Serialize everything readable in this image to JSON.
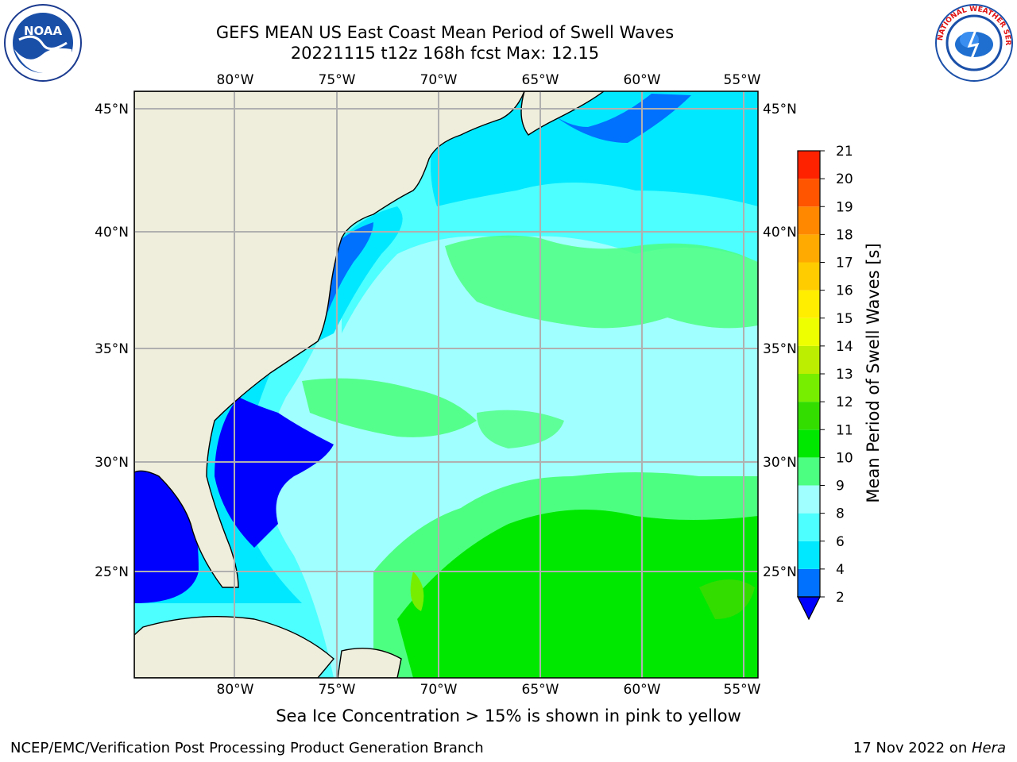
{
  "title": {
    "line1": "GEFS MEAN US East Coast Mean Period of Swell Waves",
    "line2": "20221115 t12z 168h fcst   Max: 12.15"
  },
  "map": {
    "projection": "equirectangular",
    "lon_range": [
      -85,
      -54.2
    ],
    "lat_range": [
      20.5,
      46.8
    ],
    "gridlines": true,
    "land_color": "#efeedc",
    "lon_ticks": [
      {
        "value": -80,
        "label": "80°W"
      },
      {
        "value": -75,
        "label": "75°W"
      },
      {
        "value": -70,
        "label": "70°W"
      },
      {
        "value": -65,
        "label": "65°W"
      },
      {
        "value": -60,
        "label": "60°W"
      },
      {
        "value": -55,
        "label": "55°W"
      }
    ],
    "lat_ticks": [
      {
        "value": 45,
        "label": "45°N"
      },
      {
        "value": 40,
        "label": "40°N"
      },
      {
        "value": 35,
        "label": "35°N"
      },
      {
        "value": 30,
        "label": "30°N"
      },
      {
        "value": 25,
        "label": "25°N"
      }
    ]
  },
  "colorbar": {
    "label": "Mean Period of Swell Waves [s]",
    "extend": "min",
    "tick_labels": [
      "2",
      "4",
      "6",
      "8",
      "9",
      "10",
      "11",
      "12",
      "13",
      "14",
      "15",
      "16",
      "17",
      "18",
      "19",
      "20",
      "21"
    ],
    "under_color": "#0000ff",
    "colors": [
      "#0070ff",
      "#00e8ff",
      "#4dffff",
      "#a0ffff",
      "#4dff80",
      "#00e800",
      "#33dd00",
      "#77ee00",
      "#bbee00",
      "#eeff00",
      "#ffee00",
      "#ffcc00",
      "#ffaa00",
      "#ff8800",
      "#ff5500",
      "#ff2200"
    ]
  },
  "footer": {
    "note": "Sea Ice Concentration > 15% is shown in pink to yellow",
    "credit_left": "NCEP/EMC/Verification Post Processing Product Generation Branch",
    "credit_right_date": "17 Nov 2022 on ",
    "credit_right_host": "Hera"
  },
  "logos": {
    "left_text": "NOAA",
    "right_text": "NATIONAL WEATHER SERVICE"
  }
}
